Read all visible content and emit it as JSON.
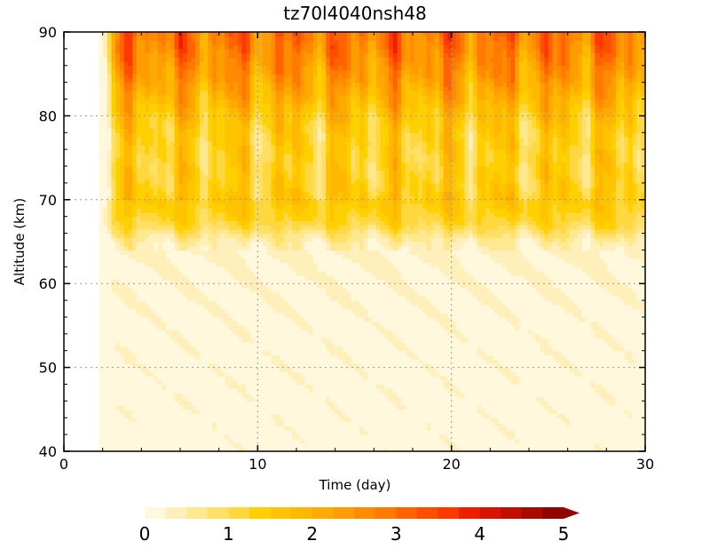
{
  "chart_data": {
    "type": "heatmap",
    "title": "tz70l4040nsh48",
    "xlabel": "Time (day)",
    "ylabel": "Altitude (km)",
    "xlim": [
      0,
      30
    ],
    "ylim": [
      40,
      90
    ],
    "x_ticks": [
      0,
      10,
      20,
      30
    ],
    "y_ticks": [
      40,
      50,
      60,
      70,
      80,
      90
    ],
    "grid": true,
    "data_start_day": 1.8,
    "colorbar": {
      "min": 0,
      "max": 5,
      "step": 0.25,
      "ticks": [
        0,
        1,
        2,
        3,
        4,
        5
      ],
      "extend": "max",
      "colors": [
        "#fff8dd",
        "#fff0bb",
        "#ffe88f",
        "#ffe066",
        "#ffd840",
        "#ffd000",
        "#ffc400",
        "#ffb800",
        "#ffaa00",
        "#ff9c00",
        "#ff8c00",
        "#ff7a00",
        "#ff6400",
        "#ff4e00",
        "#ff3800",
        "#f01e00",
        "#d81400",
        "#c00e00",
        "#a80a00",
        "#900500"
      ]
    },
    "profile": {
      "altitude_km": [
        40,
        55,
        62,
        64,
        65,
        66,
        67,
        68,
        70,
        72,
        75,
        78,
        80,
        82,
        85,
        88,
        90
      ],
      "mean_value": [
        0.1,
        0.12,
        0.2,
        0.32,
        0.45,
        0.75,
        1.1,
        1.3,
        1.5,
        1.35,
        1.3,
        1.4,
        1.6,
        1.95,
        2.4,
        2.75,
        2.9
      ]
    }
  }
}
